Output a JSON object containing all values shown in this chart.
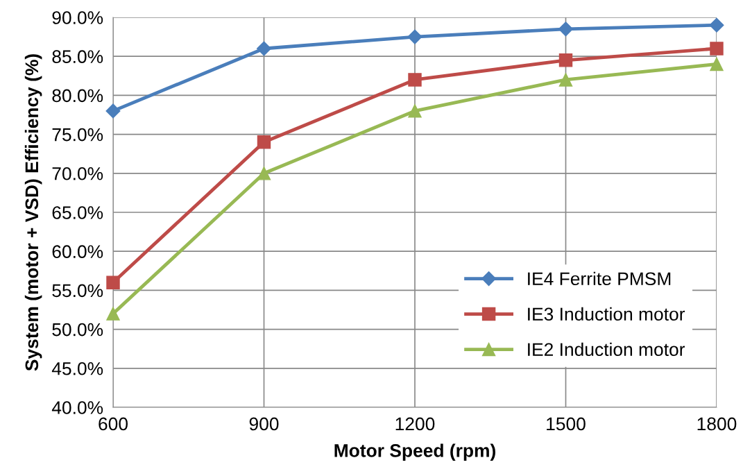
{
  "chart_data": {
    "type": "line",
    "xlabel": "Motor Speed (rpm)",
    "ylabel": "System (motor + VSD) Efficiency (%)",
    "x": [
      600,
      900,
      1200,
      1500,
      1800
    ],
    "series": [
      {
        "name": "IE4 Ferrite PMSM",
        "color": "#4a7ebb",
        "marker": "diamond",
        "values": [
          78,
          86,
          87.5,
          88.5,
          89
        ]
      },
      {
        "name": "IE3 Induction motor",
        "color": "#be4b48",
        "marker": "square",
        "values": [
          56,
          74,
          82,
          84.5,
          86
        ]
      },
      {
        "name": "IE2 Induction motor",
        "color": "#98b954",
        "marker": "triangle",
        "values": [
          52,
          70,
          78,
          82,
          84
        ]
      }
    ],
    "xlim": [
      600,
      1800
    ],
    "xticks": [
      600,
      900,
      1200,
      1500,
      1800
    ],
    "ylim": [
      40,
      90
    ],
    "yticks": [
      {
        "value": 40,
        "label": "40.0%"
      },
      {
        "value": 45,
        "label": "45.0%"
      },
      {
        "value": 50,
        "label": "50.0%"
      },
      {
        "value": 55,
        "label": "55.0%"
      },
      {
        "value": 60,
        "label": "60.0%"
      },
      {
        "value": 65,
        "label": "65.0%"
      },
      {
        "value": 70,
        "label": "70.0%"
      },
      {
        "value": 75,
        "label": "75.0%"
      },
      {
        "value": 80,
        "label": "80.0%"
      },
      {
        "value": 85,
        "label": "85.0%"
      },
      {
        "value": 90,
        "label": "90.0%"
      }
    ],
    "grid": true,
    "legend": "bottom right",
    "line_style": "solid"
  }
}
